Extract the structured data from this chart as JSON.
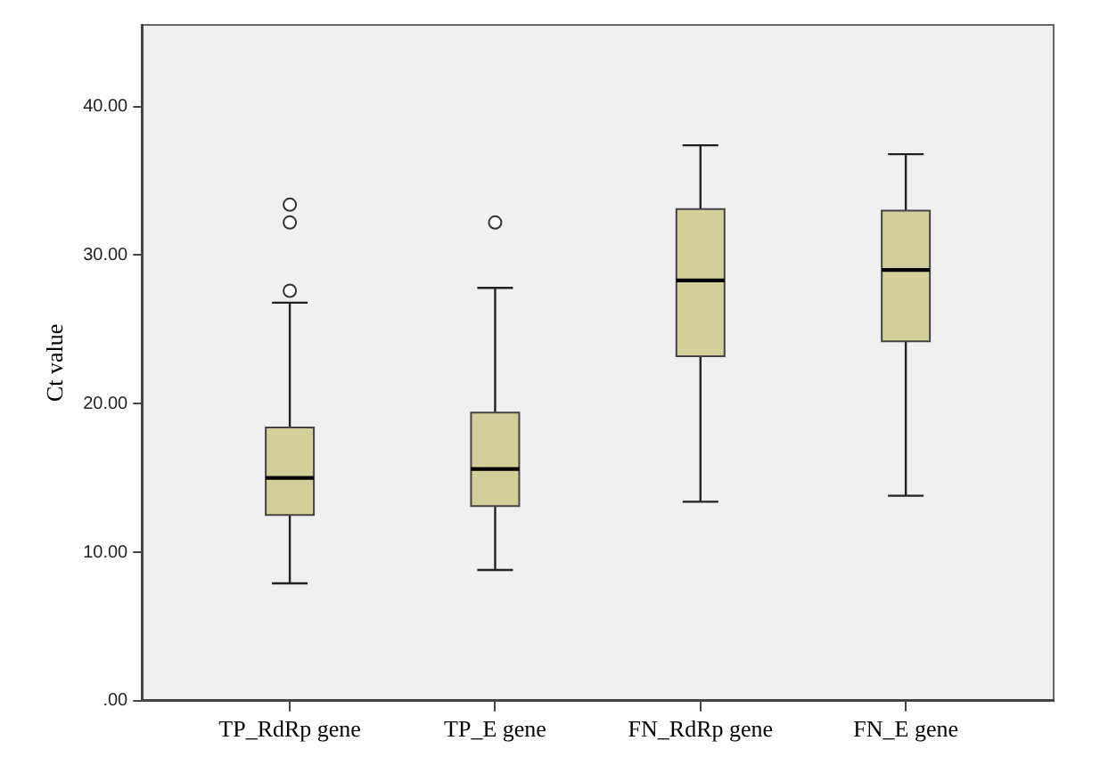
{
  "chart_data": {
    "type": "box",
    "ylabel": "Ct value",
    "categories": [
      "TP_RdRp gene",
      "TP_E gene",
      "FN_RdRp gene",
      "FN_E gene"
    ],
    "color": "#d3cf9a",
    "boxes": [
      {
        "low": 7.9,
        "q1": 12.5,
        "median": 15.0,
        "q3": 18.4,
        "high": 26.8,
        "outliers": [
          27.6,
          32.2,
          33.4
        ]
      },
      {
        "low": 8.8,
        "q1": 13.1,
        "median": 15.6,
        "q3": 19.4,
        "high": 27.8,
        "outliers": [
          32.2
        ]
      },
      {
        "low": 13.4,
        "q1": 23.2,
        "median": 28.3,
        "q3": 33.1,
        "high": 37.4
      },
      {
        "low": 13.8,
        "q1": 24.2,
        "median": 29.0,
        "q3": 33.0,
        "high": 36.8
      }
    ],
    "ylim": [
      0,
      45.5
    ],
    "yticks": [
      {
        "value": 0,
        "label": ".00"
      },
      {
        "value": 10,
        "label": "10.00"
      },
      {
        "value": 20,
        "label": "20.00"
      },
      {
        "value": 30,
        "label": "30.00"
      },
      {
        "value": 40,
        "label": "40.00"
      }
    ],
    "grid": false,
    "legend": false
  }
}
